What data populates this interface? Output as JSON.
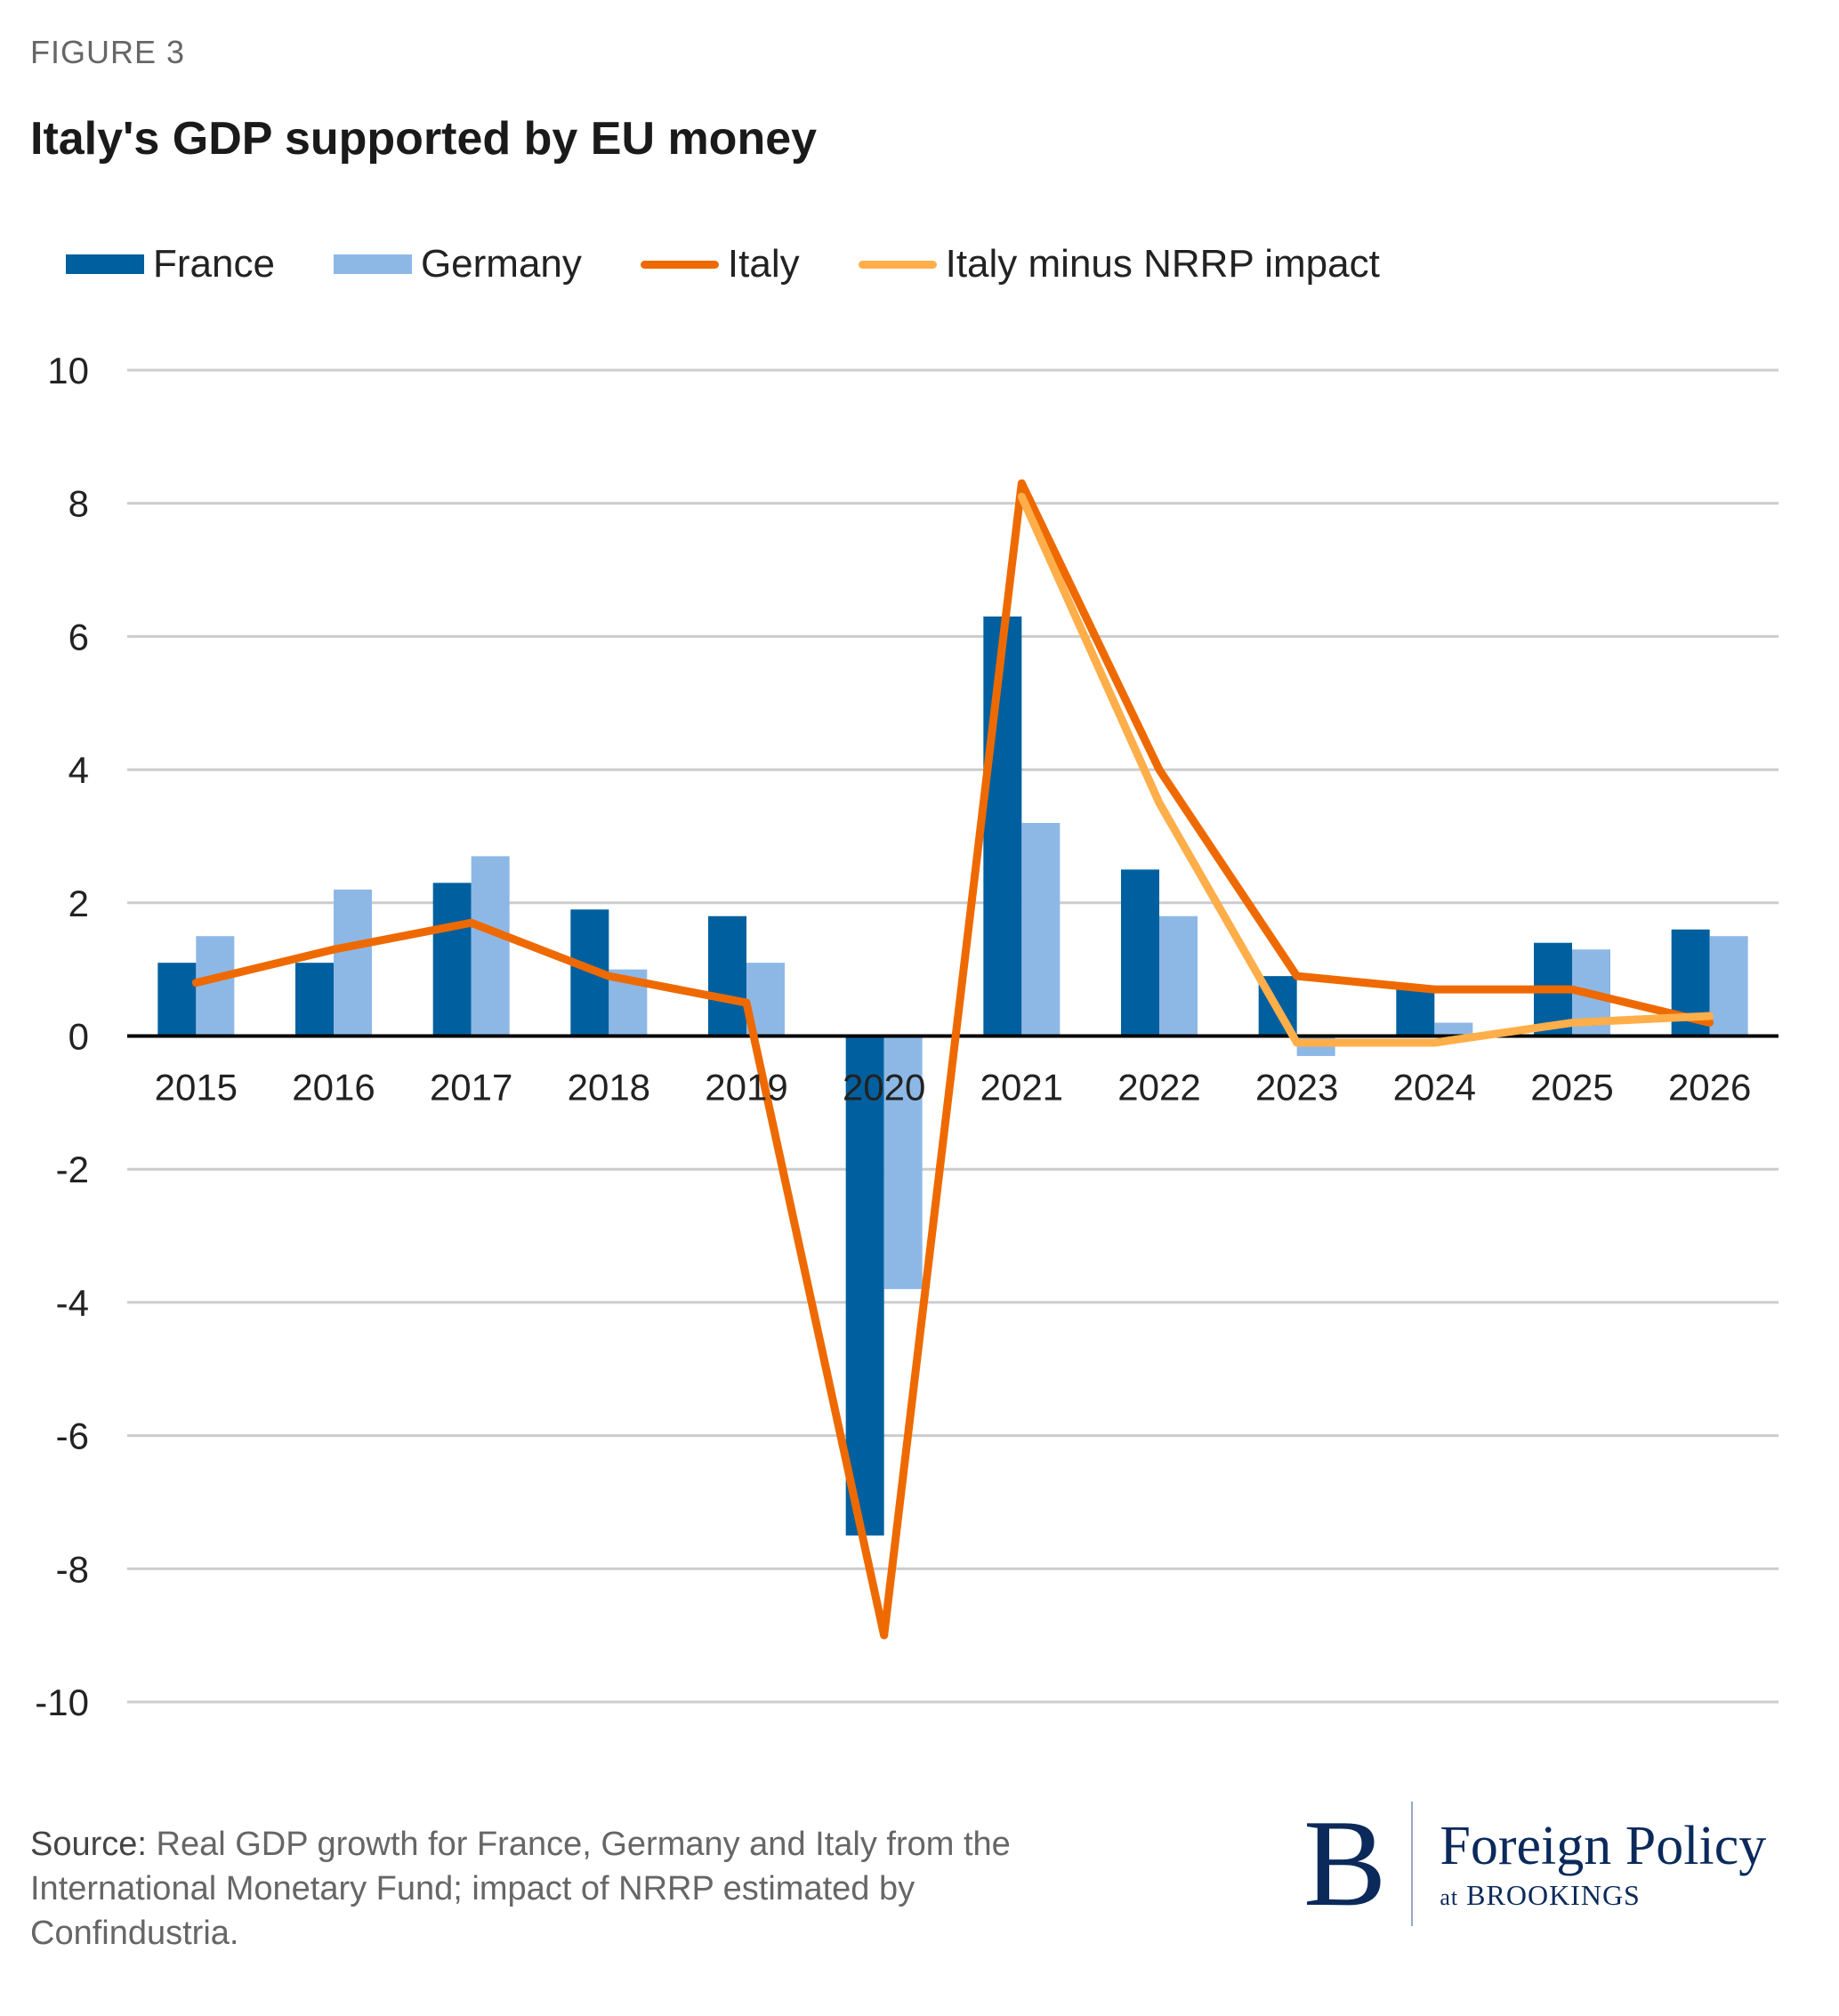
{
  "figure_label": "FIGURE 3",
  "source": {
    "label": "Source:",
    "text": " Real GDP growth for France, Germany and Italy from the International Monetary Fund; impact of NRRP estimated by Confindustria."
  },
  "logo": {
    "letter": "B",
    "name": "Foreign Policy",
    "sub_prefix": "at",
    "sub": "BROOKINGS"
  },
  "chart_data": {
    "type": "bar",
    "title": "Italy's GDP supported by EU money",
    "xlabel": "",
    "ylabel": "",
    "ylim": [
      -10,
      10
    ],
    "yticks": [
      "10",
      "8",
      "6",
      "4",
      "2",
      "0",
      "-2",
      "-4",
      "-6",
      "-8",
      "-10"
    ],
    "ytick_values": [
      10,
      8,
      6,
      4,
      2,
      0,
      -2,
      -4,
      -6,
      -8,
      -10
    ],
    "grid": true,
    "legend_position": "top-left",
    "categories": [
      "2015",
      "2016",
      "2017",
      "2018",
      "2019",
      "2020",
      "2021",
      "2022",
      "2023",
      "2024",
      "2025",
      "2026"
    ],
    "series": [
      {
        "name": "France",
        "kind": "bar",
        "color": "#00609f",
        "values": [
          1.1,
          1.1,
          2.3,
          1.9,
          1.8,
          -7.5,
          6.3,
          2.5,
          0.9,
          0.7,
          1.4,
          1.6
        ]
      },
      {
        "name": "Germany",
        "kind": "bar",
        "color": "#8db8e6",
        "values": [
          1.5,
          2.2,
          2.7,
          1.0,
          1.1,
          -3.8,
          3.2,
          1.8,
          -0.3,
          0.2,
          1.3,
          1.5
        ]
      },
      {
        "name": "Italy",
        "kind": "line",
        "color": "#ee6a00",
        "values": [
          0.8,
          1.3,
          1.7,
          0.9,
          0.5,
          -9.0,
          8.3,
          4.0,
          0.9,
          0.7,
          0.7,
          0.2
        ]
      },
      {
        "name": "Italy minus NRRP impact",
        "kind": "line",
        "color": "#ffae4a",
        "values": [
          null,
          null,
          null,
          null,
          null,
          null,
          8.1,
          3.5,
          -0.1,
          -0.1,
          0.2,
          0.3
        ]
      }
    ]
  }
}
